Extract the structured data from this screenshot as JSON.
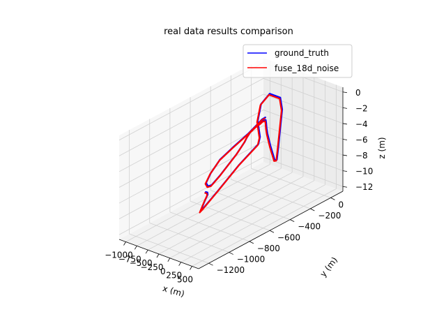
{
  "chart_data": {
    "type": "line",
    "projection": "3d",
    "title": "real data results comparison",
    "xlabel": "x (m)",
    "ylabel": "y (m)",
    "zlabel": "z (m)",
    "xlim": [
      -1150,
      650
    ],
    "ylim": [
      -1300,
      120
    ],
    "zlim": [
      -12.6,
      0.6
    ],
    "xticks": [
      -1000,
      -750,
      -500,
      -250,
      0,
      250,
      500
    ],
    "xtick_labels": [
      "−1000",
      "−750",
      "−500",
      "−250",
      "0",
      "250",
      "500"
    ],
    "yticks": [
      -1200,
      -1000,
      -800,
      -600,
      -400,
      -200,
      0
    ],
    "ytick_labels": [
      "−1200",
      "−1000",
      "−800",
      "−600",
      "−400",
      "−200",
      "0"
    ],
    "zticks": [
      -12,
      -10,
      -8,
      -6,
      -4,
      -2,
      0
    ],
    "ztick_labels": [
      "−12",
      "−10",
      "−8",
      "−6",
      "−4",
      "−2",
      "0"
    ],
    "grid": true,
    "legend_position": "top-right",
    "series": [
      {
        "name": "ground_truth",
        "color": "#0000ff",
        "points": [
          {
            "x": -660,
            "y": -660,
            "z": -10.0
          },
          {
            "x": -645,
            "y": -650,
            "z": -10.1
          },
          {
            "x": -630,
            "y": -655,
            "z": -10.3
          },
          {
            "x": -620,
            "y": -690,
            "z": -10.9
          },
          {
            "x": -600,
            "y": -740,
            "z": -11.8
          },
          {
            "x": -580,
            "y": -720,
            "z": -11.5
          },
          {
            "x": -545,
            "y": -590,
            "z": -10.1
          },
          {
            "x": -500,
            "y": -400,
            "z": -8.0
          },
          {
            "x": -460,
            "y": -230,
            "z": -6.5
          },
          {
            "x": -560,
            "y": -170,
            "z": -6.2
          },
          {
            "x": -750,
            "y": -110,
            "z": -5.0
          },
          {
            "x": -835,
            "y": -40,
            "z": -3.5
          },
          {
            "x": -800,
            "y": 30,
            "z": -2.6
          },
          {
            "x": -560,
            "y": 30,
            "z": -2.6
          },
          {
            "x": -380,
            "y": -30,
            "z": -3.3
          },
          {
            "x": -240,
            "y": -110,
            "z": -4.9
          },
          {
            "x": -120,
            "y": -180,
            "z": -6.4
          },
          {
            "x": -40,
            "y": -230,
            "z": -7.6
          },
          {
            "x": -20,
            "y": -260,
            "z": -7.4
          },
          {
            "x": 70,
            "y": -340,
            "z": -4.9
          },
          {
            "x": 160,
            "y": -410,
            "z": -2.6
          },
          {
            "x": 210,
            "y": -440,
            "z": -1.6
          },
          {
            "x": 270,
            "y": -470,
            "z": -0.6
          },
          {
            "x": 295,
            "y": -485,
            "z": -0.1
          },
          {
            "x": 320,
            "y": -520,
            "z": 0.1
          },
          {
            "x": 345,
            "y": -555,
            "z": 0.1
          },
          {
            "x": 380,
            "y": -620,
            "z": 0.15
          },
          {
            "x": 440,
            "y": -700,
            "z": 0.15
          },
          {
            "x": 500,
            "y": -760,
            "z": 0.0
          },
          {
            "x": 520,
            "y": -790,
            "z": -0.3
          },
          {
            "x": 500,
            "y": -860,
            "z": -1.4
          },
          {
            "x": 420,
            "y": -990,
            "z": -3.4
          },
          {
            "x": 370,
            "y": -1050,
            "z": -4.3
          },
          {
            "x": 310,
            "y": -1060,
            "z": -4.5
          },
          {
            "x": 220,
            "y": -1040,
            "z": -4.4
          },
          {
            "x": 140,
            "y": -960,
            "z": -3.9
          },
          {
            "x": 100,
            "y": -850,
            "z": -3.0
          },
          {
            "x": 130,
            "y": -740,
            "z": -2.2
          },
          {
            "x": 220,
            "y": -620,
            "z": -1.0
          },
          {
            "x": 250,
            "y": -560,
            "z": -0.4
          },
          {
            "x": 270,
            "y": -510,
            "z": 0.1
          },
          {
            "x": 285,
            "y": -485,
            "z": 0.2
          }
        ]
      },
      {
        "name": "fuse_18d_noise",
        "color": "#ff0000",
        "points": [
          {
            "x": -665,
            "y": -665,
            "z": -10.1
          },
          {
            "x": -648,
            "y": -655,
            "z": -10.2
          },
          {
            "x": -632,
            "y": -660,
            "z": -10.4
          },
          {
            "x": -622,
            "y": -695,
            "z": -11.0
          },
          {
            "x": -602,
            "y": -745,
            "z": -11.9
          },
          {
            "x": -582,
            "y": -725,
            "z": -11.6
          },
          {
            "x": -548,
            "y": -595,
            "z": -10.2
          },
          {
            "x": -503,
            "y": -405,
            "z": -8.1
          },
          {
            "x": -462,
            "y": -235,
            "z": -6.6
          },
          {
            "x": -562,
            "y": -175,
            "z": -6.3
          },
          {
            "x": -752,
            "y": -115,
            "z": -5.1
          },
          {
            "x": -838,
            "y": -45,
            "z": -3.6
          },
          {
            "x": -803,
            "y": 25,
            "z": -2.7
          },
          {
            "x": -563,
            "y": 25,
            "z": -2.7
          },
          {
            "x": -383,
            "y": -35,
            "z": -3.4
          },
          {
            "x": -243,
            "y": -115,
            "z": -5.0
          },
          {
            "x": -123,
            "y": -185,
            "z": -6.5
          },
          {
            "x": -43,
            "y": -235,
            "z": -7.7
          },
          {
            "x": -23,
            "y": -265,
            "z": -7.5
          },
          {
            "x": 67,
            "y": -345,
            "z": -5.0
          },
          {
            "x": 157,
            "y": -415,
            "z": -2.7
          },
          {
            "x": 207,
            "y": -445,
            "z": -1.7
          },
          {
            "x": 267,
            "y": -475,
            "z": -0.7
          },
          {
            "x": 292,
            "y": -490,
            "z": -0.2
          },
          {
            "x": 317,
            "y": -525,
            "z": 0.0
          },
          {
            "x": 342,
            "y": -560,
            "z": 0.0
          },
          {
            "x": 377,
            "y": -625,
            "z": 0.05
          },
          {
            "x": 437,
            "y": -705,
            "z": 0.05
          },
          {
            "x": 497,
            "y": -765,
            "z": -0.1
          },
          {
            "x": 517,
            "y": -795,
            "z": -0.4
          },
          {
            "x": 497,
            "y": -865,
            "z": -1.5
          },
          {
            "x": 417,
            "y": -995,
            "z": -3.5
          },
          {
            "x": 367,
            "y": -1055,
            "z": -4.4
          },
          {
            "x": 307,
            "y": -1065,
            "z": -4.6
          },
          {
            "x": 217,
            "y": -1045,
            "z": -4.5
          },
          {
            "x": 137,
            "y": -965,
            "z": -4.0
          },
          {
            "x": 97,
            "y": -855,
            "z": -3.1
          },
          {
            "x": 127,
            "y": -745,
            "z": -2.3
          },
          {
            "x": 217,
            "y": -625,
            "z": -1.1
          },
          {
            "x": 247,
            "y": -565,
            "z": -0.5
          },
          {
            "x": 267,
            "y": -515,
            "z": 0.0
          },
          {
            "x": 282,
            "y": -490,
            "z": 0.1
          }
        ]
      }
    ]
  }
}
